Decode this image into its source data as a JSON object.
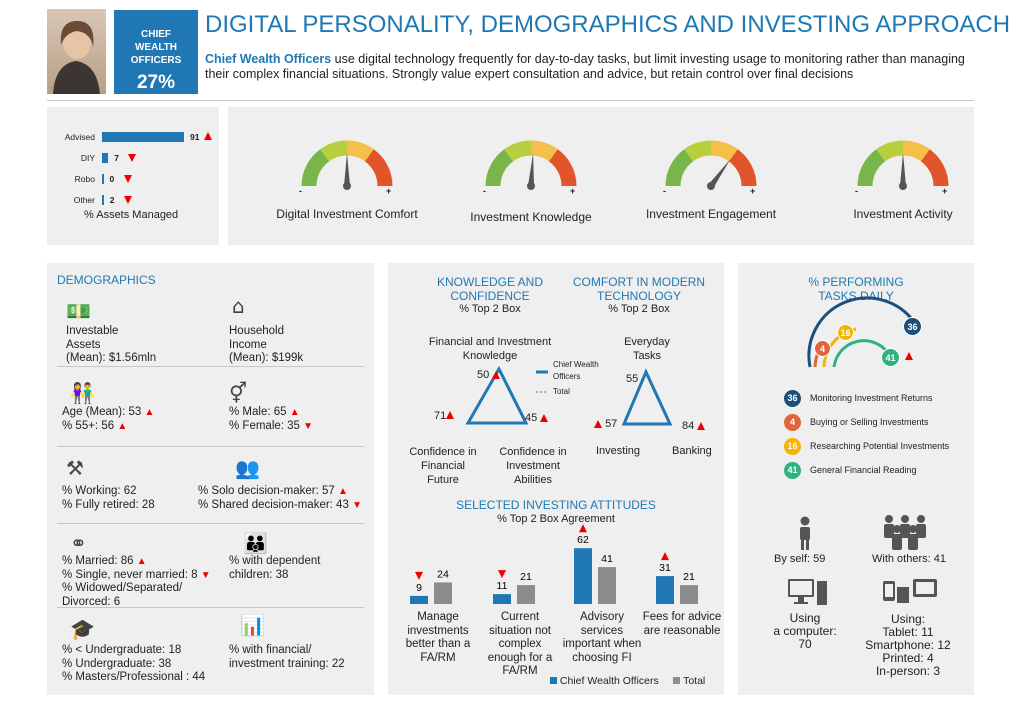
{
  "header": {
    "badge_title": "CHIEF WEALTH OFFICERS",
    "badge_pct": "27%",
    "title": "DIGITAL PERSONALITY, DEMOGRAPHICS AND INVESTING APPROACH",
    "intro_bold": "Chief Wealth Officers",
    "intro_rest": " use digital technology frequently for day-to-day tasks, but limit investing usage to monitoring rather than managing their complex financial situations. Strongly value expert consultation and advice, but retain control over final decisions"
  },
  "assets": {
    "caption": "% Assets Managed",
    "rows": [
      {
        "label": "Advised",
        "value": 91,
        "trend": "up"
      },
      {
        "label": "DIY",
        "value": 7,
        "trend": "down"
      },
      {
        "label": "Robo",
        "value": 0,
        "trend": "down"
      },
      {
        "label": "Other",
        "value": 2,
        "trend": "down"
      }
    ]
  },
  "gauges": [
    {
      "label": "Digital Investment Comfort",
      "level": 0.5
    },
    {
      "label": "Investment Knowledge",
      "level": 0.52
    },
    {
      "label": "Investment Engagement",
      "level": 0.7
    },
    {
      "label": "Investment Activity",
      "level": 0.5
    }
  ],
  "demographics": {
    "heading": "DEMOGRAPHICS",
    "items": [
      {
        "text": "Investable\nAssets\n(Mean): $1.56mln",
        "icon": "money-icon"
      },
      {
        "text": "Household\nIncome\n(Mean): $199k",
        "icon": "house-icon"
      },
      {
        "text": "Age (Mean): 53 ▲\n% 55+: 56 ▲",
        "icon": "people-icon"
      },
      {
        "text": "% Male: 65 ▲\n% Female: 35 ▼",
        "icon": "gender-icon"
      },
      {
        "text": "% Working: 62\n% Fully retired: 28",
        "icon": "worker-icon"
      },
      {
        "text": "% Solo decision-maker: 57 ▲\n% Shared decision-maker: 43▼",
        "icon": "meeting-icon"
      },
      {
        "text": "% Married: 86 ▲\n% Single, never married: 8▼\n% Widowed/Separated/\nDivorced: 6",
        "icon": "rings-icon"
      },
      {
        "text": "% with dependent\nchildren: 38",
        "icon": "family-icon"
      },
      {
        "text": "% < Undergraduate: 18\n% Undergraduate: 38\n% Masters/Professional : 44",
        "icon": "graduation-cap-icon"
      },
      {
        "text": "% with financial/\ninvestment training: 22",
        "icon": "presenter-icon"
      }
    ]
  },
  "knowledge": {
    "left_title": "KNOWLEDGE AND CONFIDENCE",
    "left_sub": "% Top 2 Box",
    "right_title": "COMFORT IN MODERN TECHNOLOGY",
    "right_sub": "% Top 2 Box",
    "legend_cwo": "Chief Wealth Officers",
    "legend_total": "Total",
    "left_top_label": "Financial and Investment Knowledge",
    "left_top_val": "50",
    "left_bl_label": "Confidence in Financial Future",
    "left_bl_val": "71",
    "left_br_label": "Confidence in Investment Abilities",
    "left_br_val": "45",
    "right_top_label": "Everyday Tasks",
    "right_top_val": "55",
    "right_bl_label": "Investing",
    "right_bl_val": "57",
    "right_br_label": "Banking",
    "right_br_val": "84"
  },
  "attitudes": {
    "title": "SELECTED INVESTING ATTITUDES",
    "sub": "% Top 2 Box Agreement",
    "legend_cwo": "Chief Wealth Officers",
    "legend_total": "Total",
    "colors": {
      "cwo": "#1f78b4",
      "total": "#8c8c8c"
    }
  },
  "chart_data": {
    "type": "bar",
    "categories": [
      "Manage investments better than a FA/RM",
      "Current situation not complex enough for a FA/RM",
      "Advisory services important when choosing FI",
      "Fees for advice are reasonable"
    ],
    "series": [
      {
        "name": "Chief Wealth Officers",
        "values": [
          9,
          11,
          62,
          31
        ]
      },
      {
        "name": "Total",
        "values": [
          24,
          21,
          41,
          21
        ]
      }
    ],
    "title": "SELECTED INVESTING ATTITUDES",
    "subtitle": "% Top 2 Box Agreement"
  },
  "tasks": {
    "title": "% PERFORMING TASKS DAILY",
    "items": [
      {
        "value": "36",
        "label": "Monitoring Investment Returns",
        "color": "#1c4f7c"
      },
      {
        "value": "4",
        "label": "Buying or Selling Investments",
        "color": "#e0643c"
      },
      {
        "value": "16",
        "label": "Researching Potential Investments",
        "color": "#f4b400"
      },
      {
        "value": "41",
        "label": "General Financial Reading",
        "color": "#2eb37f"
      }
    ],
    "by_self": "By self: 59",
    "with_others": "With others: 41",
    "computer": "Using\na computer:\n70",
    "devices": "Using:\nTablet: 11\nSmartphone: 12\nPrinted: 4\nIn-person: 3"
  }
}
